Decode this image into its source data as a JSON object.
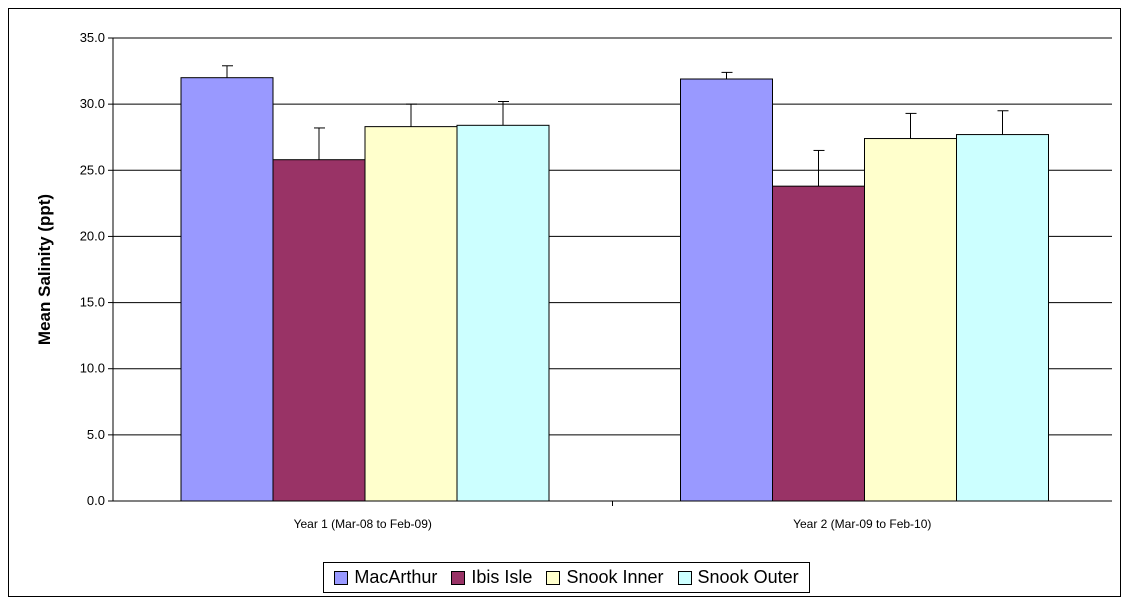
{
  "colors": {
    "background": "#ffffff",
    "MacArthur": "#9999ff",
    "Ibis Isle": "#993366",
    "Snook Inner": "#ffffcc",
    "Snook Outer": "#ccffff",
    "gridline": "#000000"
  },
  "chart_data": {
    "type": "bar",
    "title": "",
    "xlabel": "",
    "ylabel": "Mean Salinity (ppt)",
    "ylim": [
      0,
      35
    ],
    "ytick_step": 5,
    "ytick_labels": [
      "0.0",
      "5.0",
      "10.0",
      "15.0",
      "20.0",
      "25.0",
      "30.0",
      "35.0"
    ],
    "grid": true,
    "legend_position": "bottom",
    "categories": [
      "Year 1 (Mar-08 to Feb-09)",
      "Year 2 (Mar-09 to Feb-10)"
    ],
    "series": [
      {
        "name": "MacArthur",
        "values": [
          32.0,
          31.9
        ],
        "error": [
          0.9,
          0.5
        ]
      },
      {
        "name": "Ibis Isle",
        "values": [
          25.8,
          23.8
        ],
        "error": [
          2.4,
          2.7
        ]
      },
      {
        "name": "Snook Inner",
        "values": [
          28.3,
          27.4
        ],
        "error": [
          1.7,
          1.9
        ]
      },
      {
        "name": "Snook Outer",
        "values": [
          28.4,
          27.7
        ],
        "error": [
          1.8,
          1.8
        ]
      }
    ]
  }
}
